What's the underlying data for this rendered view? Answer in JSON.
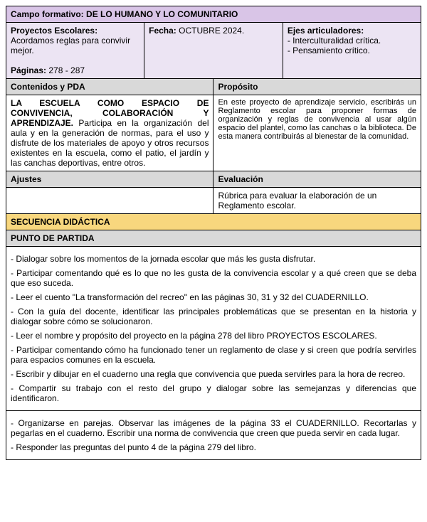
{
  "header": {
    "campo_label": "Campo formativo:",
    "campo_value": "DE LO HUMANO Y LO COMUNITARIO",
    "proyectos_label": "Proyectos Escolares:",
    "proyectos_value": "Acordamos reglas para convivir mejor.",
    "paginas_label": "Páginas:",
    "paginas_value": "278 - 287",
    "fecha_label": "Fecha:",
    "fecha_value": "OCTUBRE 2024.",
    "ejes_label": "Ejes articuladores:",
    "ejes_1": "- Interculturalidad crítica.",
    "ejes_2": "- Pensamiento crítico."
  },
  "row2": {
    "contenidos_label": "Contenidos y PDA",
    "proposito_label": "Propósito",
    "contenidos_title": "LA ESCUELA COMO ESPACIO DE CONVIVENCIA, COLABORACIÓN Y APRENDIZAJE.",
    "contenidos_body": " Participa en la organización del aula y en la generación de normas, para el uso y disfrute de los materiales de apoyo y otros recursos existentes en la escuela, como el patio, el jardín y las canchas deportivas, entre otros.",
    "proposito_body": "En este proyecto de aprendizaje servicio, escribirás un Reglamento escolar para proponer formas de organización y reglas de convivencia al usar algún espacio del plantel, como las canchas o la biblioteca. De esta manera contribuirás al bienestar de la comunidad."
  },
  "row3": {
    "ajustes_label": "Ajustes",
    "evaluacion_label": "Evaluación",
    "evaluacion_body": "Rúbrica para evaluar la elaboración de un Reglamento escolar."
  },
  "secuencia": "SECUENCIA DIDÁCTICA",
  "punto": "PUNTO DE PARTIDA",
  "items_a": [
    "- Dialogar sobre los momentos de la jornada escolar que más les gusta disfrutar.",
    "- Participar comentando qué es lo que no les gusta de la convivencia escolar y a qué creen que se deba que eso suceda.",
    "- Leer el cuento \"La transformación del recreo\" en las páginas 30, 31 y 32 del CUADERNILLO.",
    "- Con la guía del docente, identificar las principales problemáticas que se presentan en la historia y dialogar sobre cómo se solucionaron.",
    "- Leer el nombre y propósito del proyecto en la página 278 del libro PROYECTOS ESCOLARES.",
    "- Participar comentando cómo ha funcionado tener un reglamento de clase y si creen que podría servirles para espacios comunes en la escuela.",
    "- Escribir y dibujar en el cuaderno una regla que convivencia que pueda servirles para la hora de recreo.",
    "- Compartir su trabajo con el resto del grupo y dialogar sobre las semejanzas y diferencias que identificaron."
  ],
  "items_b": [
    "- Organizarse en parejas. Observar las imágenes de la página 33 el CUADERNILLO. Recortarlas y pegarlas en el cuaderno. Escribir una norma de convivencia que creen que pueda servir en cada lugar.",
    "- Responder las preguntas del punto 4 de la página 279 del libro."
  ]
}
